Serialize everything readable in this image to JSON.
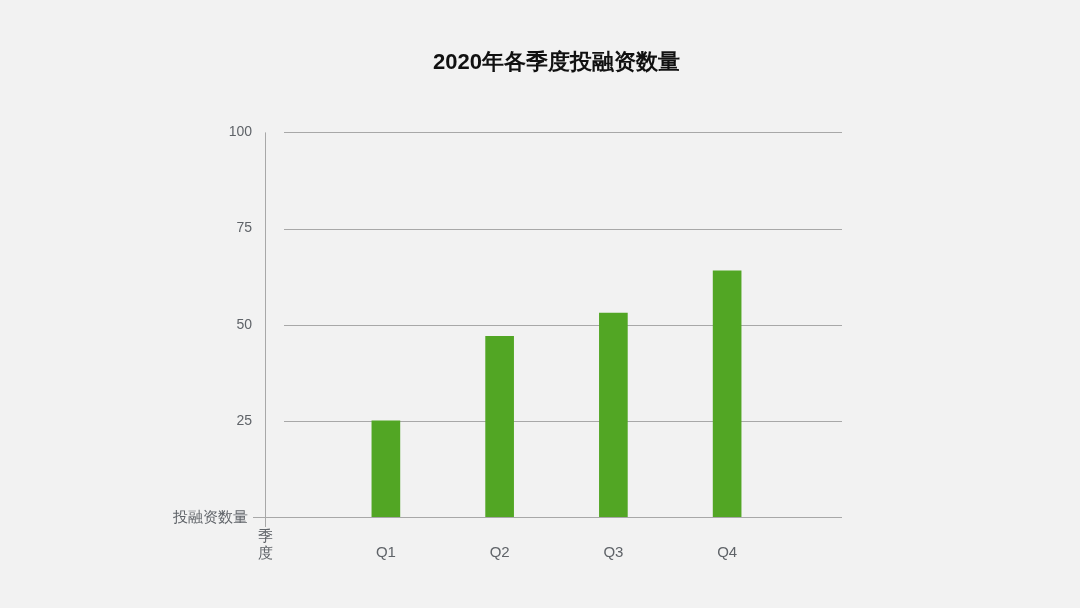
{
  "chart_data": {
    "type": "bar",
    "title": "2020年各季度投融资数量",
    "xlabel": "季度",
    "ylabel": "投融资数量",
    "categories": [
      "Q1",
      "Q2",
      "Q3",
      "Q4"
    ],
    "values": [
      25,
      47,
      53,
      64
    ],
    "color": "#52a624",
    "ylim": [
      0,
      100
    ],
    "yticks": [
      25,
      50,
      75,
      100
    ],
    "grid": "y"
  }
}
